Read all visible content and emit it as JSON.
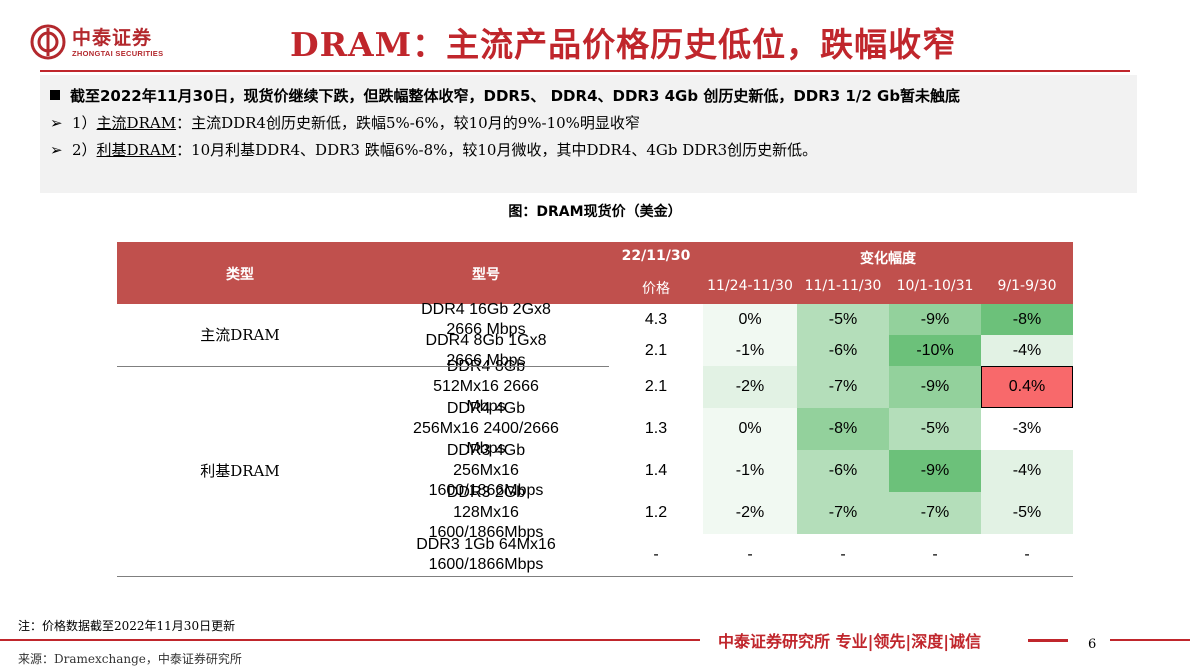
{
  "logo": {
    "name_cn": "中泰证券",
    "name_en": "ZHONGTAI SECURITIES"
  },
  "title": "DRAM：主流产品价格历史低位，跌幅收窄",
  "summary": {
    "line1": "截至2022年11月30日，现货价继续下跌，但跌幅整体收窄，DDR5、 DDR4、DDR3 4Gb 创历史新低，DDR3 1/2 Gb暂未触底",
    "line2_prefix": "1）",
    "line2_key": "主流DRAM",
    "line2_rest": "：主流DDR4创历史新低，跌幅5%-6%，较10月的9%-10%明显收窄",
    "line3_prefix": "2）",
    "line3_key": "利基DRAM",
    "line3_rest": "：10月利基DDR4、DDR3 跌幅6%-8%，较10月微收，其中DDR4、4Gb DDR3创历史新低。"
  },
  "figure_title": "图：DRAM现货价（美金）",
  "table": {
    "header": {
      "type": "类型",
      "model": "型号",
      "date": "22/11/30",
      "price": "价格",
      "change": "变化幅度",
      "periods": [
        "11/24-11/30",
        "11/1-11/30",
        "10/1-10/31",
        "9/1-9/30"
      ]
    },
    "categories": [
      "主流DRAM",
      "利基DRAM"
    ],
    "rows": [
      {
        "model": "DDR4 16Gb 2Gx8 2666 Mbps",
        "price": "4.3",
        "c1": "0%",
        "c2": "-5%",
        "c3": "-9%",
        "c4": "-8%"
      },
      {
        "model": "DDR4 8Gb 1Gx8 2666 Mbps",
        "price": "2.1",
        "c1": "-1%",
        "c2": "-6%",
        "c3": "-10%",
        "c4": "-4%"
      },
      {
        "model": "DDR4 8Gb 512Mx16 2666 Mbps",
        "price": "2.1",
        "c1": "-2%",
        "c2": "-7%",
        "c3": "-9%",
        "c4": "0.4%"
      },
      {
        "model": "DDR4 4Gb 256Mx16 2400/2666 Mbps",
        "price": "1.3",
        "c1": "0%",
        "c2": "-8%",
        "c3": "-5%",
        "c4": "-3%"
      },
      {
        "model": "DDR3 4Gb 256Mx16 1600/1866Mbps",
        "price": "1.4",
        "c1": "-1%",
        "c2": "-6%",
        "c3": "-9%",
        "c4": "-4%"
      },
      {
        "model": "DDR3 2Gb 128Mx16 1600/1866Mbps",
        "price": "1.2",
        "c1": "-2%",
        "c2": "-7%",
        "c3": "-7%",
        "c4": "-5%"
      },
      {
        "model": "DDR3 1Gb 64Mx16 1600/1866Mbps",
        "price": "-",
        "c1": "-",
        "c2": "-",
        "c3": "-",
        "c4": "-"
      }
    ],
    "colors": {
      "header_bg": "#c0504d",
      "very_light": "#f1f9f2",
      "light": "#e2f2e4",
      "medium": "#b4deba",
      "strong": "#93d19c",
      "deep": "#6cc17a",
      "red": "#f8696b"
    }
  },
  "note": "注：价格数据截至2022年11月30日更新",
  "source": "来源：Dramexchange，中泰证券研究所",
  "footer": {
    "text": "中泰证券研究所 专业|领先|深度|诚信",
    "page": "6"
  }
}
